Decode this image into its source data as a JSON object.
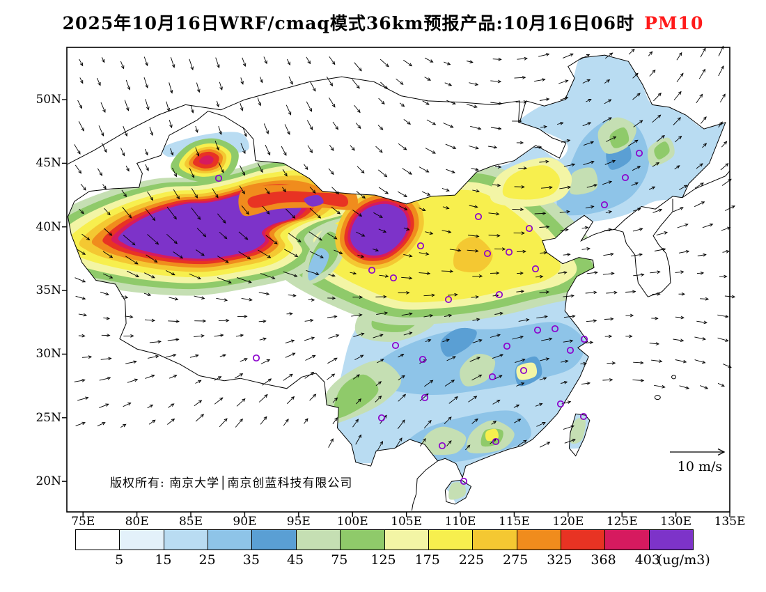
{
  "title": {
    "main": "2025年10月16日WRF/cmaq模式36km预报产品:10月16日06时",
    "pollutant": "PM10",
    "pollutant_color": "#ff1a1a"
  },
  "map": {
    "copyright": "版权所有: 南京大学│南京创蓝科技有限公司",
    "wind_scale_label": "10 m/s"
  },
  "chart_data": {
    "type": "heatmap",
    "title": "2025年10月16日WRF/cmaq模式36km预报产品:10月16日06时 PM10",
    "variable": "PM10",
    "units": "ug/m3",
    "overlay": "wind vectors with 10 m/s reference arrow; purple circles mark cities",
    "x_axis": {
      "label": "longitude",
      "tick_labels": [
        "75E",
        "80E",
        "85E",
        "90E",
        "95E",
        "100E",
        "105E",
        "110E",
        "115E",
        "120E",
        "125E",
        "130E",
        "135E"
      ],
      "tick_values": [
        75,
        80,
        85,
        90,
        95,
        100,
        105,
        110,
        115,
        120,
        125,
        130,
        135
      ]
    },
    "y_axis": {
      "label": "latitude",
      "tick_labels": [
        "50N",
        "45N",
        "40N",
        "35N",
        "30N",
        "25N",
        "20N"
      ],
      "tick_values": [
        50,
        45,
        40,
        35,
        30,
        25,
        20
      ]
    },
    "colorbar": {
      "boundaries": [
        5,
        15,
        25,
        35,
        45,
        75,
        125,
        175,
        225,
        275,
        325,
        368,
        403
      ],
      "colors": [
        "#ffffff",
        "#e3f1fa",
        "#b9dcf2",
        "#8ec4e8",
        "#5a9fd4",
        "#c5dfb3",
        "#8fca6a",
        "#f3f5a5",
        "#f7ef4e",
        "#f4c832",
        "#f08c1d",
        "#e83323",
        "#d61a5f",
        "#7d33c9"
      ],
      "unit_label": "(ug/m3)"
    },
    "wind_reference": {
      "label": "10 m/s",
      "speed_m_s": 10
    }
  }
}
